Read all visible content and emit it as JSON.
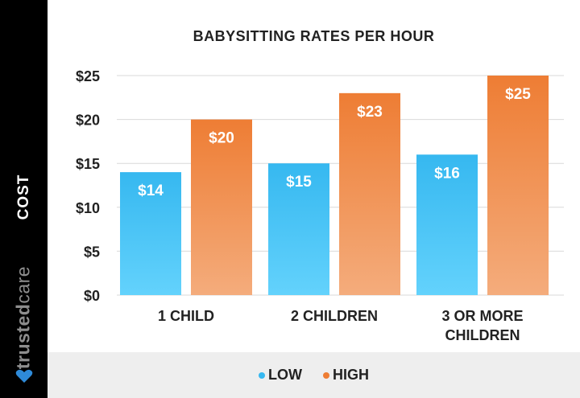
{
  "sidebar": {
    "axis_label": "COST",
    "brand_bold": "trusted",
    "brand_light": "care"
  },
  "colors": {
    "low": "#36b8f0",
    "low_light": "#63d2fc",
    "high": "#ee7d34",
    "high_light": "#f4ac7c",
    "brand_mark": "#2e8ad8",
    "grid": "#d9d9d9",
    "text": "#222222"
  },
  "chart_data": {
    "type": "bar",
    "title": "BABYSITTING RATES PER HOUR",
    "ylabel": "COST",
    "xlabel": "",
    "ylim": [
      0,
      25
    ],
    "ytick_labels": [
      "$0",
      "$5",
      "$10",
      "$15",
      "$20",
      "$25"
    ],
    "yticks": [
      0,
      5,
      10,
      15,
      20,
      25
    ],
    "categories": [
      [
        "1 CHILD"
      ],
      [
        "2 CHILDREN"
      ],
      [
        "3 OR MORE",
        "CHILDREN"
      ]
    ],
    "series": [
      {
        "name": "LOW",
        "values": [
          14,
          15,
          16
        ],
        "labels": [
          "$14",
          "$15",
          "$16"
        ]
      },
      {
        "name": "HIGH",
        "values": [
          20,
          23,
          25
        ],
        "labels": [
          "$20",
          "$23",
          "$25"
        ]
      }
    ],
    "grid": true,
    "legend_position": "bottom"
  }
}
